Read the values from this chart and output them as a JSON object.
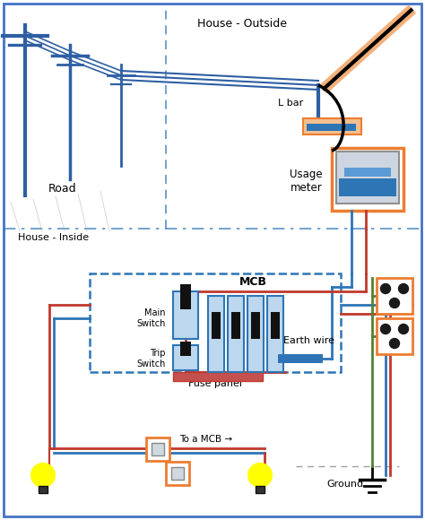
{
  "fig_w": 4.74,
  "fig_h": 5.8,
  "border_color": "#4472c4",
  "outside_label": "House - Outside",
  "road_label": "Road",
  "inside_label": "House - Inside",
  "lbar_label": "L bar",
  "usage_label": "Usage\nmeter",
  "mcb_label": "MCB",
  "main_sw_label": "Main\nSwitch",
  "trip_sw_label": "Trip\nSwitch",
  "fuse_label": "Fuse panel",
  "earth_label": "Earth wire",
  "ground_label": "Ground",
  "to_mcb_label": "To a MCB →",
  "pole_color": "#2e5fa3",
  "red_wire": "#c0392b",
  "blue_wire": "#2e75b6",
  "dark_blue": "#1f3864",
  "green_wire": "#538135",
  "orange": "#ed7d31",
  "black": "#000000",
  "gray": "#808080"
}
